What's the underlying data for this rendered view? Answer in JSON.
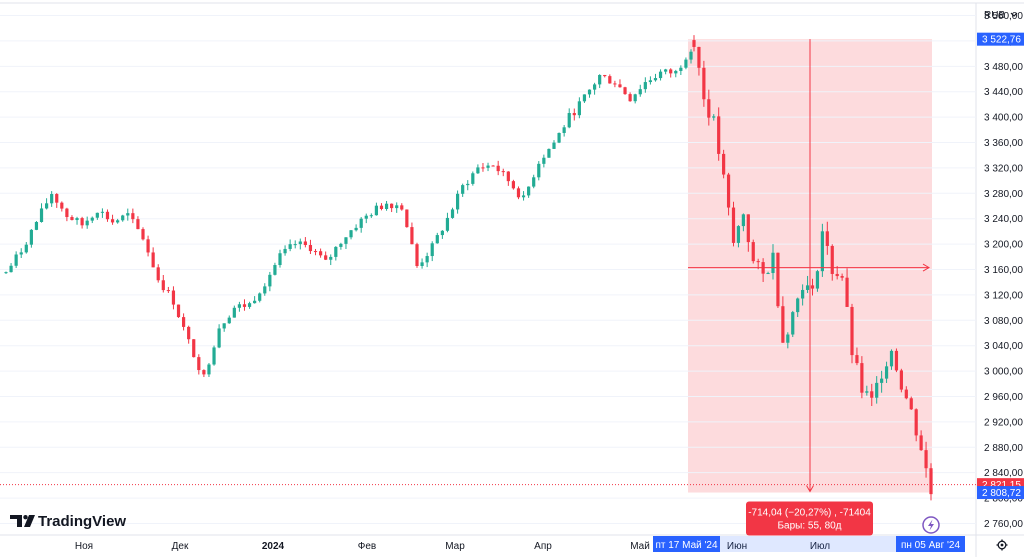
{
  "chart_data": {
    "type": "candlestick",
    "currency": "RUB",
    "ylim": [
      2745,
      3575
    ],
    "y_ticks": [
      3560,
      3520,
      3480,
      3440,
      3400,
      3360,
      3320,
      3280,
      3240,
      3200,
      3160,
      3120,
      3080,
      3040,
      3000,
      2960,
      2920,
      2880,
      2840,
      2800,
      2760
    ],
    "y_tick_labels": [
      "3 560,00",
      "3 520,00",
      "3 480,00",
      "3 440,00",
      "3 400,00",
      "3 360,00",
      "3 320,00",
      "3 280,00",
      "3 240,00",
      "3 200,00",
      "3 160,00",
      "3 120,00",
      "3 080,00",
      "3 040,00",
      "3 000,00",
      "2 960,00",
      "2 920,00",
      "2 880,00",
      "2 840,00",
      "2 800,00",
      "2 760,00"
    ],
    "x_labels": [
      {
        "text": "Ноя",
        "bold": false
      },
      {
        "text": "Дек",
        "bold": false
      },
      {
        "text": "2024",
        "bold": true
      },
      {
        "text": "Фев",
        "bold": false
      },
      {
        "text": "Мар",
        "bold": false
      },
      {
        "text": "Апр",
        "bold": false
      },
      {
        "text": "Май",
        "bold": false
      },
      {
        "text": "Июн",
        "bold": false
      },
      {
        "text": "Июл",
        "bold": false
      }
    ],
    "close_path": [
      3155,
      3190,
      3235,
      3280,
      3245,
      3230,
      3255,
      3235,
      3245,
      3210,
      3145,
      3110,
      3045,
      2990,
      3070,
      3100,
      3105,
      3140,
      3180,
      3200,
      3195,
      3170,
      3205,
      3230,
      3250,
      3265,
      3260,
      3165,
      3195,
      3240,
      3290,
      3320,
      3325,
      3300,
      3270,
      3330,
      3360,
      3400,
      3430,
      3465,
      3455,
      3430,
      3455,
      3470,
      3470,
      3510
    ],
    "range_path": [
      3522.76,
      3430,
      3390,
      3300,
      3200,
      3250,
      3170,
      3150,
      3180,
      3050,
      3090,
      3140,
      3120,
      3220,
      3160,
      3150,
      3030,
      2970,
      2950,
      3000,
      3035,
      2980,
      2935,
      2880,
      2808.72
    ],
    "price_tags": [
      {
        "value": 3522.76,
        "label": "3 522,76",
        "color": "#2962ff"
      },
      {
        "value": 2821.15,
        "label": "2 821,15",
        "color": "#f23645"
      },
      {
        "value": 2808.72,
        "label": "2 808,72",
        "color": "#2962ff"
      }
    ],
    "measure": {
      "start_value": 3522.76,
      "end_value": 2808.72,
      "center_value": 3163,
      "start_date_label": "пт 17 Май '24",
      "end_date_label": "пн 05 Авг '24",
      "change_text": "-714,04 (−20,27%) , -71404",
      "bars_text": "Бары: 55, 80д"
    },
    "up_color": "#22ab94",
    "down_color": "#f23645"
  },
  "logo_text": "TradingView"
}
